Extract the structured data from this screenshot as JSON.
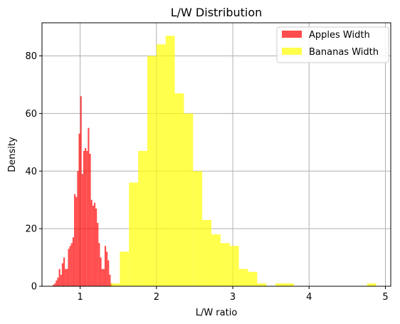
{
  "chart_data": {
    "type": "bar",
    "title": "L/W Distribution",
    "xlabel": "L/W ratio",
    "ylabel": "Density",
    "xlim": [
      0.5,
      5.07
    ],
    "ylim": [
      0,
      91.5
    ],
    "xticks": [
      1,
      2,
      3,
      4,
      5
    ],
    "yticks": [
      0,
      20,
      40,
      60,
      80
    ],
    "grid": true,
    "legend_position": "top-right",
    "series": [
      {
        "name": "Apples Width",
        "color": "#ff0000",
        "opacity": 0.7,
        "bin_width": 0.02,
        "bins": [
          {
            "x": 0.64,
            "y": 0.5
          },
          {
            "x": 0.66,
            "y": 1
          },
          {
            "x": 0.68,
            "y": 2
          },
          {
            "x": 0.7,
            "y": 3
          },
          {
            "x": 0.72,
            "y": 6
          },
          {
            "x": 0.74,
            "y": 4
          },
          {
            "x": 0.76,
            "y": 8
          },
          {
            "x": 0.78,
            "y": 10
          },
          {
            "x": 0.8,
            "y": 6
          },
          {
            "x": 0.82,
            "y": 6
          },
          {
            "x": 0.84,
            "y": 13
          },
          {
            "x": 0.86,
            "y": 14
          },
          {
            "x": 0.88,
            "y": 15
          },
          {
            "x": 0.9,
            "y": 17
          },
          {
            "x": 0.92,
            "y": 32
          },
          {
            "x": 0.94,
            "y": 31
          },
          {
            "x": 0.96,
            "y": 40
          },
          {
            "x": 0.98,
            "y": 53
          },
          {
            "x": 1.0,
            "y": 66
          },
          {
            "x": 1.02,
            "y": 39
          },
          {
            "x": 1.04,
            "y": 47
          },
          {
            "x": 1.06,
            "y": 48
          },
          {
            "x": 1.08,
            "y": 47
          },
          {
            "x": 1.1,
            "y": 55
          },
          {
            "x": 1.12,
            "y": 46
          },
          {
            "x": 1.14,
            "y": 30
          },
          {
            "x": 1.16,
            "y": 28
          },
          {
            "x": 1.18,
            "y": 29
          },
          {
            "x": 1.2,
            "y": 27
          },
          {
            "x": 1.22,
            "y": 22
          },
          {
            "x": 1.24,
            "y": 15
          },
          {
            "x": 1.26,
            "y": 10
          },
          {
            "x": 1.28,
            "y": 6
          },
          {
            "x": 1.3,
            "y": 6
          },
          {
            "x": 1.32,
            "y": 14
          },
          {
            "x": 1.34,
            "y": 12
          },
          {
            "x": 1.36,
            "y": 9
          },
          {
            "x": 1.38,
            "y": 4
          },
          {
            "x": 1.4,
            "y": 1
          }
        ]
      },
      {
        "name": "Bananas Width",
        "color": "#ffff00",
        "opacity": 0.7,
        "bin_width": 0.12,
        "bins": [
          {
            "x": 1.4,
            "y": 1
          },
          {
            "x": 1.52,
            "y": 12
          },
          {
            "x": 1.64,
            "y": 36
          },
          {
            "x": 1.76,
            "y": 47
          },
          {
            "x": 1.88,
            "y": 80
          },
          {
            "x": 2.0,
            "y": 84
          },
          {
            "x": 2.12,
            "y": 87
          },
          {
            "x": 2.24,
            "y": 67
          },
          {
            "x": 2.36,
            "y": 60
          },
          {
            "x": 2.48,
            "y": 40
          },
          {
            "x": 2.6,
            "y": 23
          },
          {
            "x": 2.72,
            "y": 18
          },
          {
            "x": 2.84,
            "y": 15
          },
          {
            "x": 2.96,
            "y": 14
          },
          {
            "x": 3.08,
            "y": 6
          },
          {
            "x": 3.2,
            "y": 5
          },
          {
            "x": 3.32,
            "y": 1
          },
          {
            "x": 3.44,
            "y": 0
          },
          {
            "x": 3.56,
            "y": 1
          },
          {
            "x": 3.68,
            "y": 1
          },
          {
            "x": 3.8,
            "y": 0
          },
          {
            "x": 3.92,
            "y": 0
          },
          {
            "x": 4.04,
            "y": 0
          },
          {
            "x": 4.16,
            "y": 0
          },
          {
            "x": 4.28,
            "y": 0
          },
          {
            "x": 4.4,
            "y": 0
          },
          {
            "x": 4.52,
            "y": 0
          },
          {
            "x": 4.64,
            "y": 0
          },
          {
            "x": 4.76,
            "y": 1
          }
        ]
      }
    ]
  }
}
